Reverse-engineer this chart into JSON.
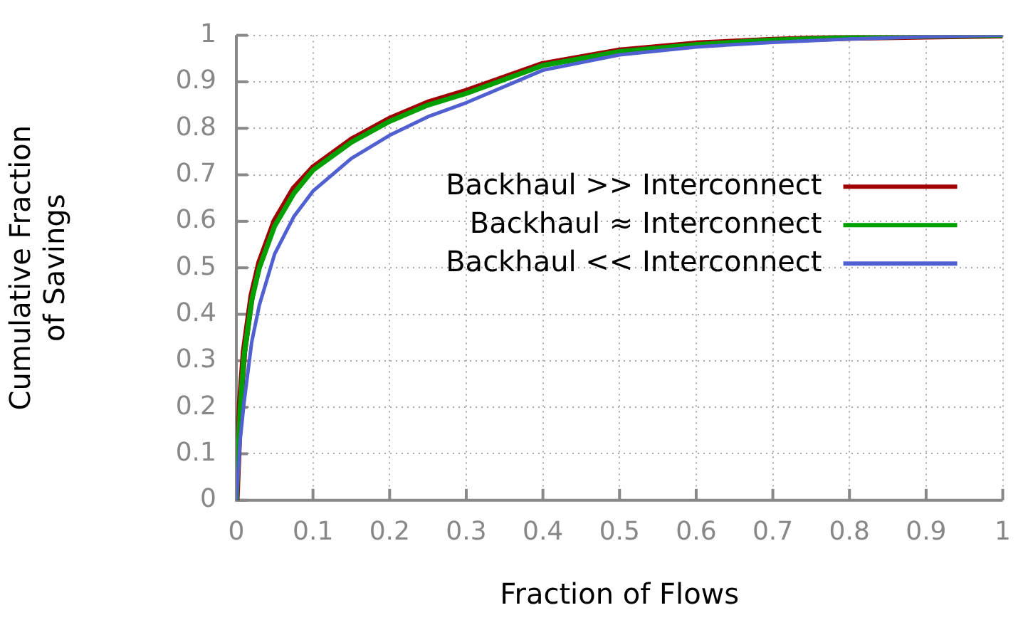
{
  "chart_data": {
    "type": "line",
    "xlabel": "Fraction of Flows",
    "ylabel": "Cumulative Fraction\nof Savings",
    "x": [
      0,
      0.005,
      0.01,
      0.02,
      0.03,
      0.05,
      0.075,
      0.1,
      0.15,
      0.2,
      0.25,
      0.3,
      0.4,
      0.5,
      0.6,
      0.7,
      0.8,
      0.9,
      1
    ],
    "series": [
      {
        "name": "Backhaul >> Interconnect",
        "color": "#a00000",
        "values": [
          0,
          0.21,
          0.32,
          0.44,
          0.51,
          0.6,
          0.67,
          0.715,
          0.775,
          0.82,
          0.855,
          0.88,
          0.938,
          0.967,
          0.982,
          0.99,
          0.995,
          0.998,
          1
        ]
      },
      {
        "name": "Backhaul ≈ Interconnect",
        "color": "#00a000",
        "values": [
          0,
          0.2,
          0.31,
          0.43,
          0.5,
          0.59,
          0.66,
          0.71,
          0.77,
          0.815,
          0.85,
          0.875,
          0.935,
          0.965,
          0.98,
          0.99,
          0.995,
          0.998,
          1
        ]
      },
      {
        "name": "Backhaul << Interconnect",
        "color": "#5060d0",
        "values": [
          0,
          0.13,
          0.21,
          0.34,
          0.42,
          0.53,
          0.61,
          0.665,
          0.735,
          0.785,
          0.825,
          0.855,
          0.925,
          0.958,
          0.975,
          0.985,
          0.992,
          0.997,
          1
        ]
      }
    ],
    "xlim": [
      0,
      1
    ],
    "xticks": [
      0,
      0.1,
      0.2,
      0.3,
      0.4,
      0.5,
      0.6,
      0.7,
      0.8,
      0.9,
      1
    ],
    "ylim": [
      0,
      1
    ],
    "yticks": [
      0,
      0.1,
      0.2,
      0.3,
      0.4,
      0.5,
      0.6,
      0.7,
      0.8,
      0.9,
      1
    ],
    "grid": true,
    "legend": "right",
    "marker": "none",
    "line_style": "solid"
  }
}
